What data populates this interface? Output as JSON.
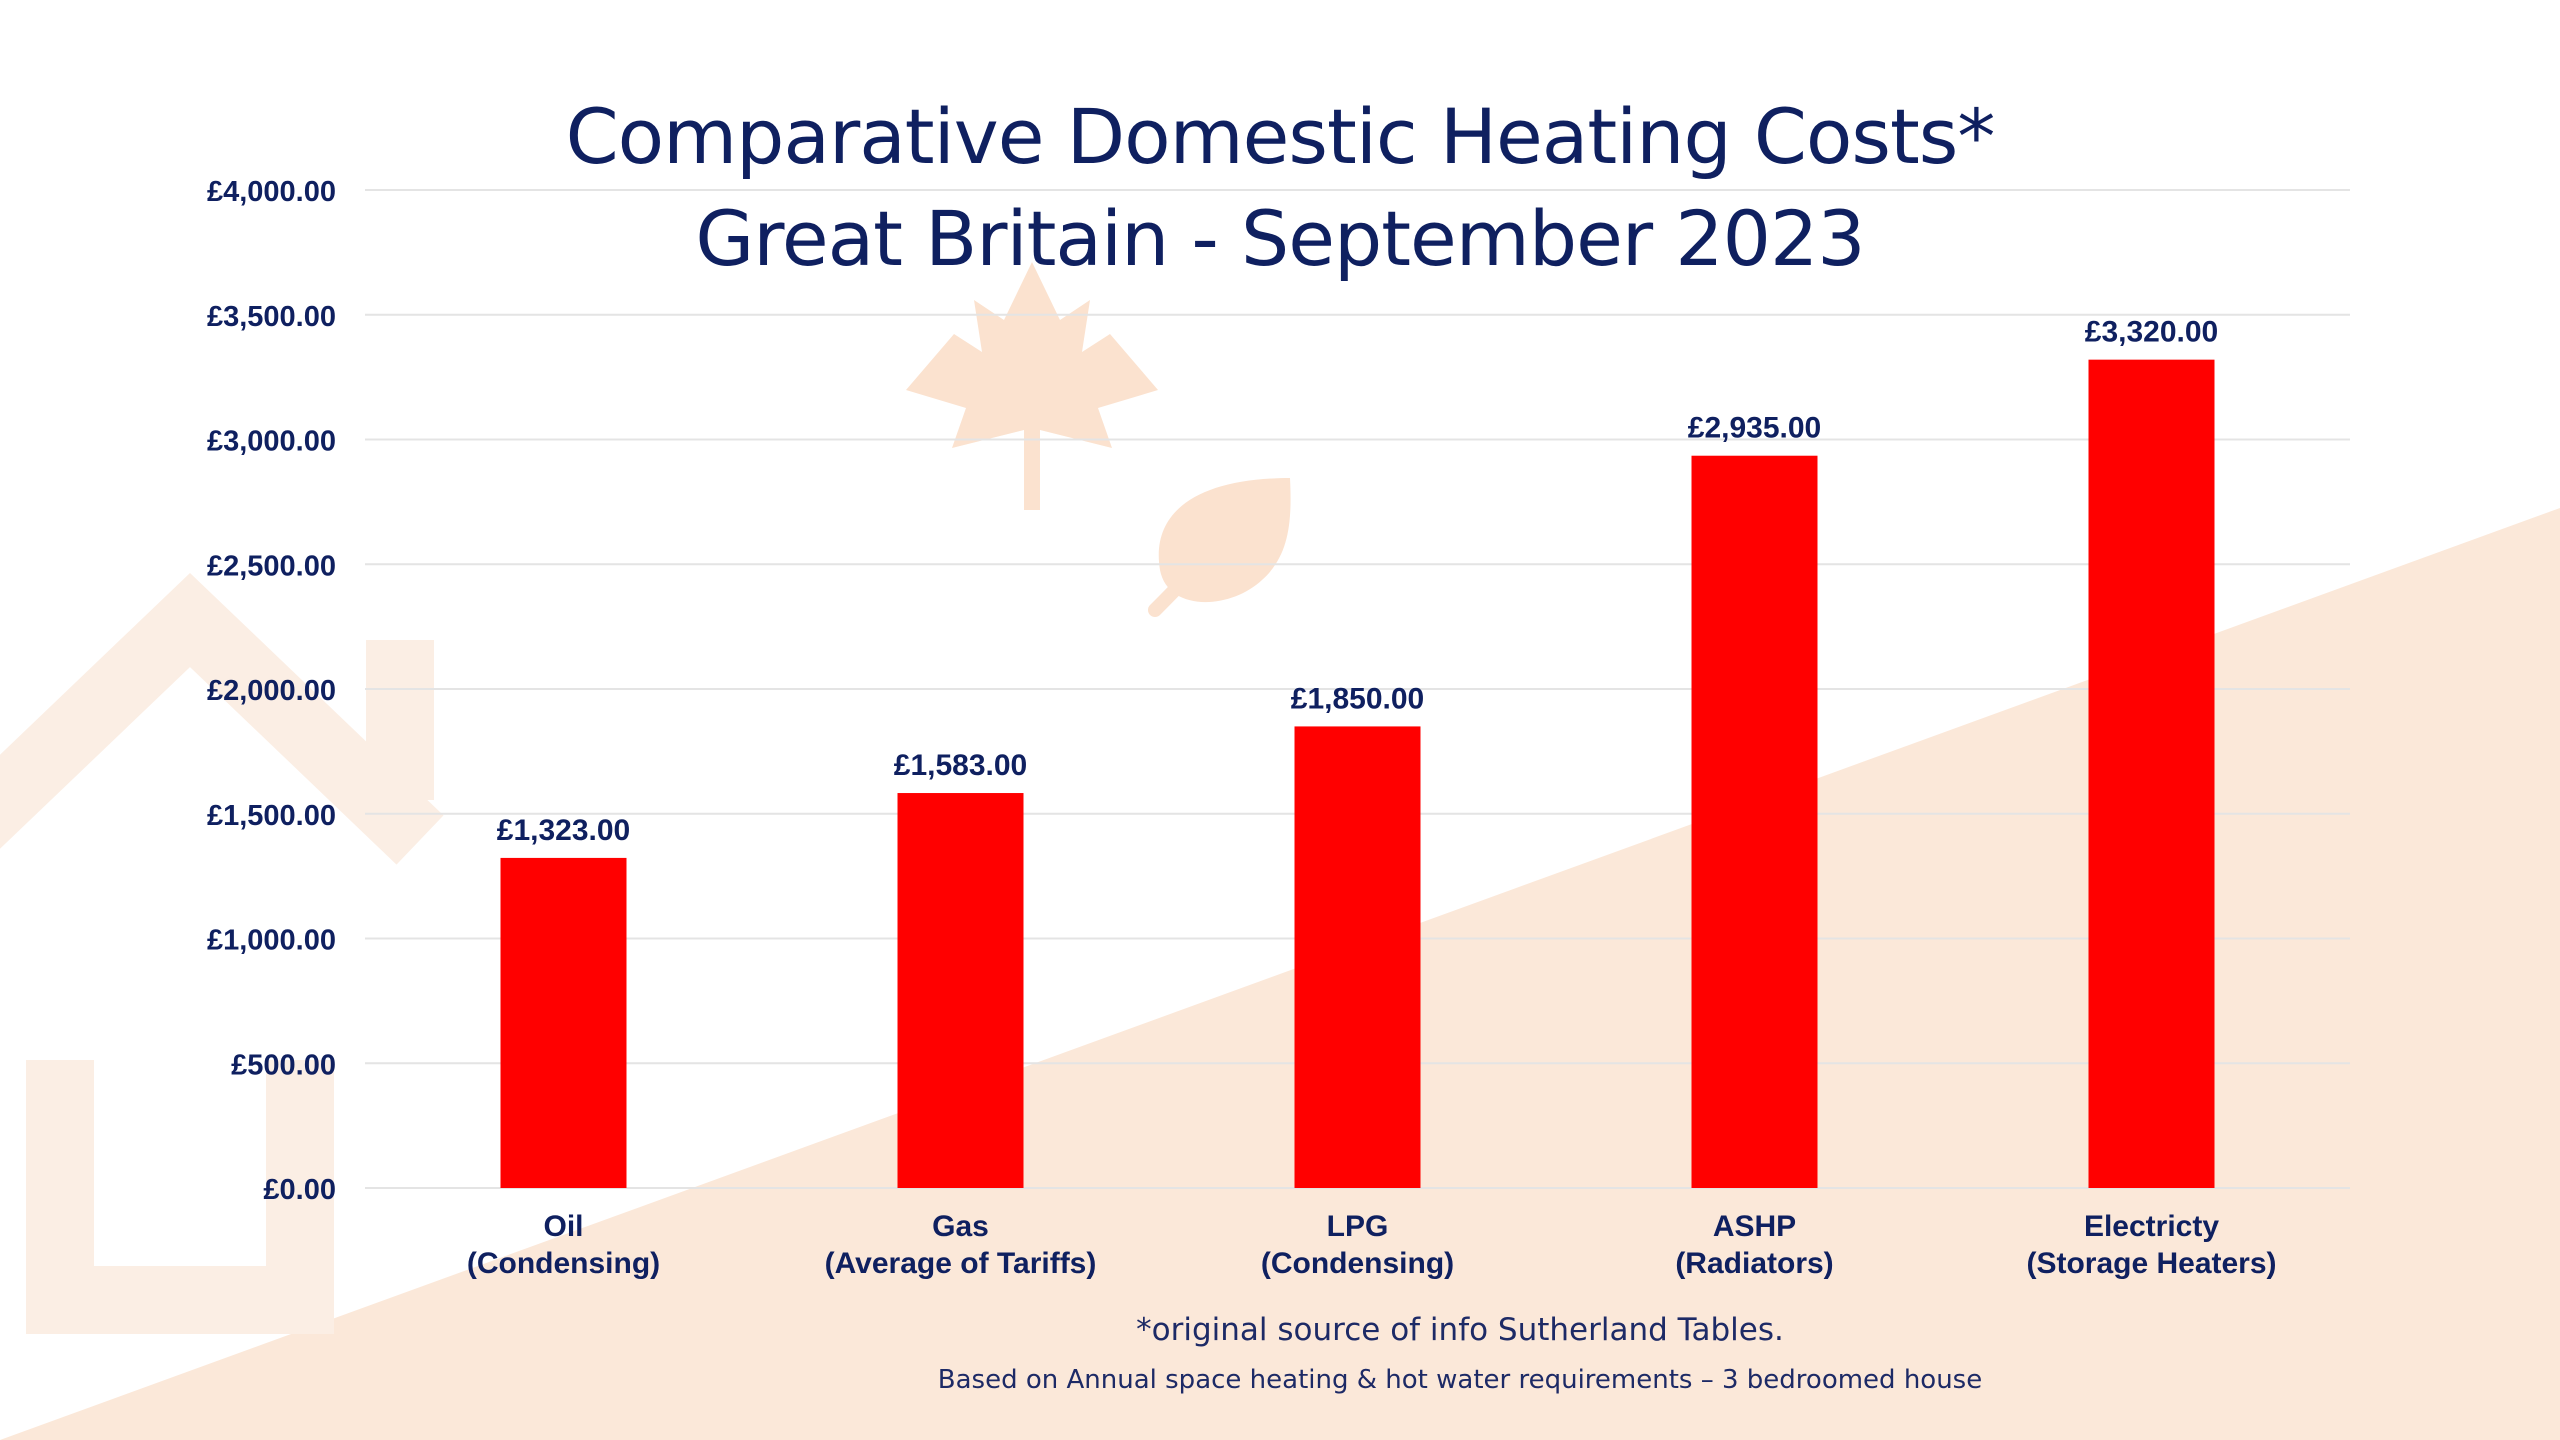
{
  "title": {
    "line1": "Comparative Domestic Heating Costs*",
    "line2": "Great Britain - September 2023"
  },
  "footnotes": {
    "source": "*original source of info Sutherland Tables.",
    "basis": "Based on Annual space heating & hot water requirements – 3 bedroomed house"
  },
  "colors": {
    "bar": "#ff0000",
    "text": "#0f2060",
    "gridline": "#e4e4e4",
    "background_accent": "#fbe8d9",
    "background_icons": "#fbe2cf"
  },
  "background_icons": [
    "house-icon",
    "maple-leaf-icon",
    "leaf-icon"
  ],
  "chart_data": {
    "type": "bar",
    "categories": [
      [
        "Oil",
        "(Condensing)"
      ],
      [
        "Gas",
        "(Average of Tariffs)"
      ],
      [
        "LPG",
        "(Condensing)"
      ],
      [
        "ASHP",
        "(Radiators)"
      ],
      [
        "Electricty",
        "(Storage Heaters)"
      ]
    ],
    "values": [
      1323,
      1583,
      1850,
      2935,
      3320
    ],
    "value_labels": [
      "£1,323.00",
      "£1,583.00",
      "£1,850.00",
      "£2,935.00",
      "£3,320.00"
    ],
    "y_ticks": [
      0,
      500,
      1000,
      1500,
      2000,
      2500,
      3000,
      3500,
      4000
    ],
    "y_tick_labels": [
      "£0.00",
      "£500.00",
      "£1,000.00",
      "£1,500.00",
      "£2,000.00",
      "£2,500.00",
      "£3,000.00",
      "£3,500.00",
      "£4,000.00"
    ],
    "ylim": [
      0,
      4000
    ],
    "grid": true,
    "legend": "none"
  }
}
